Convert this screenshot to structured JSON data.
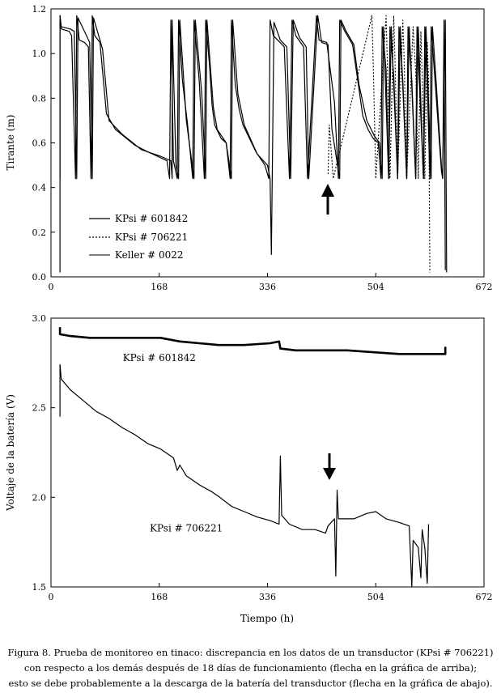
{
  "chart_data": [
    {
      "type": "line",
      "xlim": [
        0,
        672
      ],
      "ylim": [
        0,
        1.2
      ],
      "xticks": [
        "0",
        "168",
        "336",
        "504",
        "672"
      ],
      "yticks": [
        "0.0",
        "0.2",
        "0.4",
        "0.6",
        "0.8",
        "1.0",
        "1.2"
      ],
      "ylabel": "Tirante (m)",
      "xlabel": "",
      "grid": false,
      "legend": "lower-left",
      "annotation": "up arrow at x≈442 h, y≈0.30 m",
      "series": [
        {
          "name": "KPsi # 601842",
          "style": "solid",
          "points": [
            [
              14,
              0.44
            ],
            [
              14,
              1.17
            ],
            [
              16,
              1.11
            ],
            [
              28,
              1.1
            ],
            [
              32,
              1.08
            ],
            [
              38,
              0.44
            ],
            [
              40,
              1.17
            ],
            [
              44,
              1.06
            ],
            [
              52,
              1.05
            ],
            [
              58,
              1.03
            ],
            [
              62,
              0.44
            ],
            [
              64,
              1.17
            ],
            [
              68,
              1.08
            ],
            [
              76,
              1.05
            ],
            [
              86,
              0.73
            ],
            [
              100,
              0.66
            ],
            [
              130,
              0.59
            ],
            [
              150,
              0.56
            ],
            [
              165,
              0.54
            ],
            [
              180,
              0.52
            ],
            [
              184,
              0.44
            ],
            [
              186,
              1.15
            ],
            [
              190,
              0.52
            ],
            [
              196,
              0.44
            ],
            [
              198,
              1.15
            ],
            [
              204,
              0.88
            ],
            [
              212,
              0.68
            ],
            [
              220,
              0.44
            ],
            [
              222,
              1.15
            ],
            [
              230,
              0.88
            ],
            [
              238,
              0.44
            ],
            [
              240,
              1.15
            ],
            [
              246,
              0.95
            ],
            [
              250,
              0.77
            ],
            [
              254,
              0.68
            ],
            [
              264,
              0.62
            ],
            [
              272,
              0.6
            ],
            [
              278,
              0.44
            ],
            [
              280,
              1.15
            ],
            [
              286,
              0.86
            ],
            [
              292,
              0.75
            ],
            [
              298,
              0.68
            ],
            [
              318,
              0.56
            ],
            [
              332,
              0.5
            ],
            [
              338,
              0.44
            ],
            [
              340,
              1.15
            ],
            [
              345,
              1.08
            ],
            [
              352,
              1.06
            ],
            [
              362,
              1.03
            ],
            [
              370,
              0.44
            ],
            [
              374,
              1.15
            ],
            [
              380,
              1.08
            ],
            [
              392,
              1.03
            ],
            [
              398,
              0.44
            ],
            [
              412,
              1.17
            ],
            [
              416,
              1.06
            ],
            [
              428,
              1.05
            ],
            [
              440,
              0.78
            ],
            [
              446,
              0.44
            ],
            [
              448,
              1.15
            ],
            [
              456,
              1.1
            ],
            [
              468,
              1.04
            ],
            [
              476,
              0.88
            ],
            [
              484,
              0.72
            ],
            [
              492,
              0.66
            ],
            [
              500,
              0.62
            ],
            [
              508,
              0.6
            ],
            [
              512,
              0.44
            ],
            [
              514,
              1.12
            ],
            [
              520,
              0.93
            ],
            [
              524,
              0.44
            ],
            [
              526,
              1.12
            ],
            [
              532,
              0.9
            ],
            [
              538,
              0.44
            ],
            [
              540,
              1.12
            ],
            [
              546,
              0.88
            ],
            [
              552,
              0.44
            ],
            [
              554,
              1.12
            ],
            [
              560,
              0.88
            ],
            [
              566,
              0.44
            ],
            [
              568,
              1.12
            ],
            [
              572,
              0.85
            ],
            [
              578,
              0.44
            ],
            [
              580,
              1.12
            ],
            [
              584,
              0.86
            ],
            [
              588,
              0.44
            ],
            [
              590,
              1.12
            ],
            [
              596,
              0.88
            ],
            [
              606,
              0.47
            ],
            [
              608,
              0.44
            ],
            [
              610,
              1.15
            ],
            [
              612,
              0.03
            ]
          ]
        },
        {
          "name": "KPsi # 706221",
          "style": "dotted",
          "points": [
            [
              430,
              0.46
            ],
            [
              432,
              0.68
            ],
            [
              438,
              0.44
            ],
            [
              498,
              1.17
            ],
            [
              500,
              0.96
            ],
            [
              504,
              0.44
            ],
            [
              520,
              1.17
            ],
            [
              522,
              0.96
            ],
            [
              526,
              0.44
            ],
            [
              532,
              1.17
            ],
            [
              534,
              0.96
            ],
            [
              538,
              0.44
            ],
            [
              546,
              1.15
            ],
            [
              548,
              0.98
            ],
            [
              552,
              0.44
            ],
            [
              562,
              1.12
            ],
            [
              566,
              0.92
            ],
            [
              570,
              0.44
            ],
            [
              574,
              1.1
            ],
            [
              576,
              0.9
            ],
            [
              580,
              0.44
            ],
            [
              584,
              1.05
            ],
            [
              586,
              0.88
            ],
            [
              588,
              0.02
            ]
          ]
        },
        {
          "name": "Keller # 0022",
          "style": "solid",
          "points": [
            [
              14,
              0.02
            ],
            [
              14,
              1.17
            ],
            [
              16,
              1.12
            ],
            [
              30,
              1.11
            ],
            [
              36,
              1.1
            ],
            [
              40,
              0.44
            ],
            [
              42,
              1.16
            ],
            [
              60,
              1.05
            ],
            [
              64,
              0.44
            ],
            [
              66,
              1.16
            ],
            [
              80,
              1.02
            ],
            [
              90,
              0.7
            ],
            [
              110,
              0.64
            ],
            [
              140,
              0.57
            ],
            [
              170,
              0.54
            ],
            [
              186,
              0.52
            ],
            [
              188,
              0.44
            ],
            [
              188,
              1.15
            ],
            [
              194,
              0.5
            ],
            [
              198,
              0.44
            ],
            [
              200,
              1.15
            ],
            [
              210,
              0.7
            ],
            [
              222,
              0.44
            ],
            [
              224,
              1.15
            ],
            [
              234,
              0.82
            ],
            [
              240,
              0.44
            ],
            [
              242,
              1.15
            ],
            [
              252,
              0.76
            ],
            [
              258,
              0.66
            ],
            [
              272,
              0.6
            ],
            [
              280,
              0.44
            ],
            [
              282,
              1.15
            ],
            [
              290,
              0.82
            ],
            [
              300,
              0.68
            ],
            [
              320,
              0.55
            ],
            [
              336,
              0.5
            ],
            [
              340,
              0.44
            ],
            [
              342,
              0.1
            ],
            [
              346,
              1.14
            ],
            [
              356,
              1.06
            ],
            [
              366,
              1.03
            ],
            [
              372,
              0.44
            ],
            [
              376,
              1.15
            ],
            [
              386,
              1.07
            ],
            [
              396,
              1.03
            ],
            [
              400,
              0.44
            ],
            [
              414,
              1.17
            ],
            [
              420,
              1.05
            ],
            [
              430,
              1.04
            ],
            [
              436,
              0.66
            ],
            [
              448,
              0.44
            ],
            [
              450,
              1.15
            ],
            [
              458,
              1.1
            ],
            [
              470,
              1.04
            ],
            [
              478,
              0.86
            ],
            [
              490,
              0.7
            ],
            [
              502,
              0.63
            ],
            [
              510,
              0.6
            ],
            [
              514,
              0.44
            ],
            [
              516,
              1.12
            ],
            [
              524,
              0.44
            ],
            [
              528,
              1.12
            ],
            [
              538,
              0.44
            ],
            [
              542,
              1.12
            ],
            [
              552,
              0.44
            ],
            [
              556,
              1.12
            ],
            [
              566,
              0.44
            ],
            [
              570,
              1.12
            ],
            [
              578,
              0.44
            ],
            [
              582,
              1.12
            ],
            [
              590,
              0.44
            ],
            [
              592,
              1.12
            ],
            [
              598,
              0.86
            ],
            [
              606,
              0.49
            ],
            [
              608,
              0.44
            ],
            [
              612,
              1.15
            ],
            [
              614,
              0.02
            ]
          ]
        }
      ]
    },
    {
      "type": "line",
      "xlim": [
        0,
        672
      ],
      "ylim": [
        1.5,
        3.0
      ],
      "xticks": [
        "0",
        "168",
        "336",
        "504",
        "672"
      ],
      "yticks": [
        "1.5",
        "2.0",
        "2.5",
        "3.0"
      ],
      "ylabel": "Voltaje de la batería (V)",
      "xlabel": "Tiempo (h)",
      "grid": false,
      "annotation": "down arrow at x≈442 h, y≈2.15 V",
      "series": [
        {
          "name": "KPsi # 601842",
          "style": "solid-bold",
          "label_position": [
            168,
            2.76
          ],
          "points": [
            [
              14,
              2.95
            ],
            [
              14,
              2.91
            ],
            [
              30,
              2.9
            ],
            [
              60,
              2.89
            ],
            [
              100,
              2.89
            ],
            [
              140,
              2.89
            ],
            [
              170,
              2.89
            ],
            [
              200,
              2.87
            ],
            [
              230,
              2.86
            ],
            [
              260,
              2.85
            ],
            [
              300,
              2.85
            ],
            [
              340,
              2.86
            ],
            [
              354,
              2.87
            ],
            [
              356,
              2.83
            ],
            [
              380,
              2.82
            ],
            [
              420,
              2.82
            ],
            [
              460,
              2.82
            ],
            [
              500,
              2.81
            ],
            [
              540,
              2.8
            ],
            [
              580,
              2.8
            ],
            [
              612,
              2.8
            ],
            [
              612,
              2.84
            ]
          ]
        },
        {
          "name": "KPsi # 706221",
          "style": "solid",
          "label_position": [
            210,
            1.81
          ],
          "points": [
            [
              14,
              2.45
            ],
            [
              14,
              2.74
            ],
            [
              16,
              2.66
            ],
            [
              30,
              2.6
            ],
            [
              50,
              2.54
            ],
            [
              70,
              2.48
            ],
            [
              90,
              2.44
            ],
            [
              110,
              2.39
            ],
            [
              130,
              2.35
            ],
            [
              150,
              2.3
            ],
            [
              170,
              2.27
            ],
            [
              190,
              2.22
            ],
            [
              196,
              2.15
            ],
            [
              200,
              2.18
            ],
            [
              210,
              2.12
            ],
            [
              230,
              2.07
            ],
            [
              250,
              2.03
            ],
            [
              262,
              2.0
            ],
            [
              280,
              1.95
            ],
            [
              300,
              1.92
            ],
            [
              320,
              1.89
            ],
            [
              340,
              1.87
            ],
            [
              354,
              1.85
            ],
            [
              356,
              2.23
            ],
            [
              358,
              1.9
            ],
            [
              370,
              1.85
            ],
            [
              390,
              1.82
            ],
            [
              410,
              1.82
            ],
            [
              426,
              1.8
            ],
            [
              430,
              1.84
            ],
            [
              440,
              1.88
            ],
            [
              442,
              1.56
            ],
            [
              444,
              2.04
            ],
            [
              446,
              1.88
            ],
            [
              470,
              1.88
            ],
            [
              490,
              1.91
            ],
            [
              504,
              1.92
            ],
            [
              520,
              1.88
            ],
            [
              540,
              1.86
            ],
            [
              556,
              1.84
            ],
            [
              560,
              1.5
            ],
            [
              562,
              1.76
            ],
            [
              570,
              1.72
            ],
            [
              574,
              1.55
            ],
            [
              576,
              1.82
            ],
            [
              580,
              1.72
            ],
            [
              584,
              1.52
            ],
            [
              586,
              1.85
            ]
          ]
        }
      ]
    }
  ],
  "caption": {
    "line1": "Figura 8. Prueba de monitoreo en tinaco: discrepancia en los datos de un transductor (KPsi # 706221)",
    "line2": "con respecto a los demás después de 18 días de funcionamiento (flecha en la gráfica de arriba);",
    "line3": "esto se debe probablemente a la descarga de la batería del transductor (flecha en la gráfica de abajo)."
  }
}
